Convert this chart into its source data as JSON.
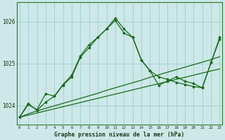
{
  "title": "Graphe pression niveau de la mer (hPa)",
  "bg_color": "#cce8e8",
  "plot_bg": "#cce8e8",
  "grid_color": "#9fcfcf",
  "line_color": "#1a6b1a",
  "x_ticks": [
    0,
    1,
    2,
    3,
    4,
    5,
    6,
    7,
    8,
    9,
    10,
    11,
    12,
    13,
    14,
    15,
    16,
    17,
    18,
    19,
    20,
    21,
    22,
    23
  ],
  "y_ticks": [
    1024,
    1025,
    1026
  ],
  "ylim": [
    1023.55,
    1026.45
  ],
  "xlim": [
    -0.3,
    23.3
  ],
  "main_series": [
    1023.72,
    1024.05,
    1023.88,
    1024.08,
    1024.22,
    1024.48,
    1024.68,
    1025.15,
    1025.38,
    1025.62,
    1025.82,
    1026.08,
    1025.82,
    1025.62,
    1025.08,
    1024.82,
    1024.48,
    1024.58,
    1024.68,
    1024.58,
    1024.52,
    1024.42,
    1025.02,
    1025.62
  ],
  "smooth_series": [
    1023.72,
    1024.02,
    1023.9,
    1024.28,
    1024.22,
    1024.5,
    1024.72,
    1025.18,
    1025.45,
    1025.62,
    1025.82,
    1026.02,
    1025.72,
    1025.62,
    1025.08,
    1024.82,
    1024.68,
    1024.62,
    1024.55,
    1024.5,
    1024.45,
    1024.42,
    1025.02,
    1025.58
  ],
  "trend1": [
    1023.72,
    1023.8,
    1023.87,
    1023.93,
    1023.99,
    1024.05,
    1024.11,
    1024.17,
    1024.23,
    1024.29,
    1024.36,
    1024.42,
    1024.48,
    1024.54,
    1024.6,
    1024.67,
    1024.73,
    1024.79,
    1024.85,
    1024.91,
    1024.97,
    1025.03,
    1025.09,
    1025.16
  ],
  "trend2": [
    1023.72,
    1023.77,
    1023.82,
    1023.87,
    1023.92,
    1023.97,
    1024.02,
    1024.07,
    1024.12,
    1024.17,
    1024.22,
    1024.27,
    1024.32,
    1024.37,
    1024.42,
    1024.47,
    1024.52,
    1024.57,
    1024.62,
    1024.67,
    1024.72,
    1024.77,
    1024.82,
    1024.87
  ]
}
